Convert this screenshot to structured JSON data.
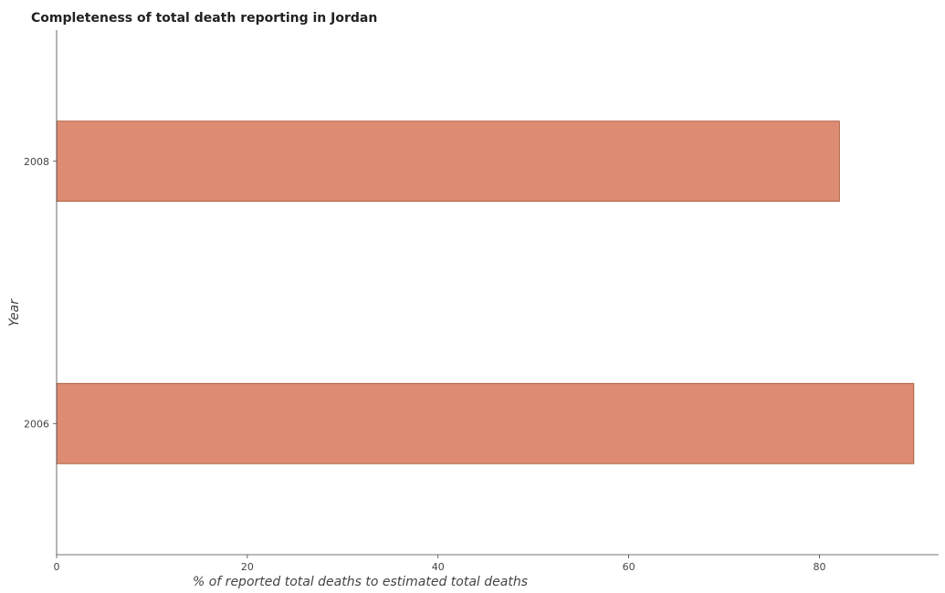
{
  "chart_data": {
    "type": "bar",
    "orientation": "horizontal",
    "title": "Completeness of total death reporting in Jordan",
    "xlabel": "% of reported total deaths to estimated total deaths",
    "ylabel": "Year",
    "categories": [
      "2006",
      "2008"
    ],
    "values": [
      89.9,
      82.1
    ],
    "xlim": [
      0,
      92.5
    ],
    "xticks": [
      0,
      20,
      40,
      60,
      80
    ],
    "xtick_labels": [
      "0",
      "20",
      "40",
      "60",
      "80"
    ],
    "grid": false,
    "legend": "none",
    "bar_color": "#dd8b73",
    "bar_edge_color": "#a0522d"
  }
}
